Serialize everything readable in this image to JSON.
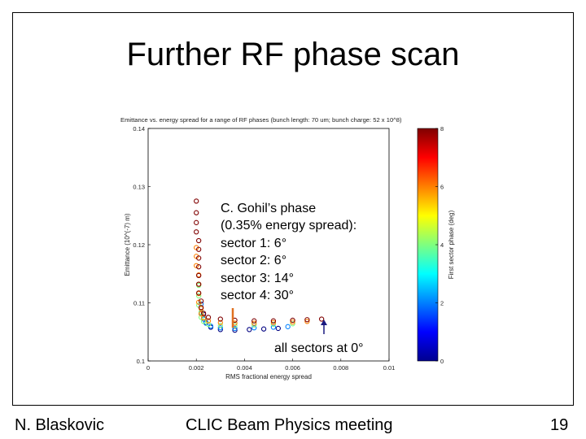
{
  "slide": {
    "title": "Further RF phase scan",
    "footer_left": "N. Blaskovic",
    "footer_center": "CLIC Beam Physics meeting",
    "footer_right": "19"
  },
  "annotations": {
    "gohil": [
      "C. Gohil’s phase",
      "(0.35% energy spread):",
      "sector 1: 6°",
      "sector 2: 6°",
      "sector 3: 14°",
      "sector 4: 30°"
    ],
    "all_zero": "all sectors at 0°",
    "arrow_color_gohil": "#e07020",
    "arrow_color_zero": "#1a1a80"
  },
  "chart_data": {
    "type": "scatter",
    "title": "Emittance vs. energy spread for a range of RF phases  (bunch length: 70 um; bunch charge: 52 x 10^8)",
    "xlabel": "RMS fractional energy spread",
    "ylabel": "Emittance (10^(-7) m)",
    "xlim": [
      0,
      0.01
    ],
    "ylim": [
      0.1,
      0.14
    ],
    "xticks": [
      "0",
      "0.002",
      "0.004",
      "0.006",
      "0.008",
      "0.01"
    ],
    "yticks": [
      "0.1",
      "0.11",
      "0.12",
      "0.13",
      "0.14"
    ],
    "grid": false,
    "colorbar": {
      "label": "First sector phase (deg)",
      "range": [
        0,
        8
      ],
      "ticks": [
        "0",
        "2",
        "4",
        "6",
        "8"
      ],
      "colormap": "jet"
    },
    "series": [
      {
        "phase": 8.0,
        "x": [
          0.002,
          0.002,
          0.002,
          0.002,
          0.0021,
          0.0021,
          0.0021,
          0.0021,
          0.0021,
          0.0021,
          0.0021,
          0.0022,
          0.0022,
          0.0023,
          0.0025,
          0.003,
          0.0036,
          0.0044,
          0.0052,
          0.006,
          0.0066,
          0.0072
        ],
        "y": [
          0.1275,
          0.1255,
          0.1238,
          0.1222,
          0.1207,
          0.1192,
          0.1177,
          0.1162,
          0.1147,
          0.1132,
          0.1117,
          0.1103,
          0.1092,
          0.1082,
          0.1075,
          0.1072,
          0.107,
          0.1069,
          0.1069,
          0.107,
          0.1071,
          0.1072
        ]
      },
      {
        "phase": 6.0,
        "x": [
          0.002,
          0.002,
          0.002,
          0.0021,
          0.0021,
          0.0021,
          0.0021,
          0.0022,
          0.0022,
          0.0023,
          0.0025,
          0.003,
          0.0036,
          0.0044,
          0.0052,
          0.006,
          0.0066
        ],
        "y": [
          0.1195,
          0.118,
          0.1164,
          0.1148,
          0.1132,
          0.1116,
          0.1101,
          0.109,
          0.1081,
          0.1074,
          0.1069,
          0.1066,
          0.1065,
          0.1065,
          0.1066,
          0.1067,
          0.1068
        ]
      },
      {
        "phase": 4.0,
        "x": [
          0.0021,
          0.0021,
          0.0021,
          0.0022,
          0.0022,
          0.0023,
          0.0025,
          0.003,
          0.0036,
          0.0044,
          0.0052,
          0.006
        ],
        "y": [
          0.113,
          0.1112,
          0.1096,
          0.1084,
          0.1075,
          0.1068,
          0.1063,
          0.1061,
          0.1061,
          0.1062,
          0.1063,
          0.1064
        ]
      },
      {
        "phase": 2.0,
        "x": [
          0.0022,
          0.0022,
          0.0023,
          0.0024,
          0.0026,
          0.003,
          0.0036,
          0.0044,
          0.0052,
          0.0058
        ],
        "y": [
          0.1098,
          0.1083,
          0.1072,
          0.1065,
          0.106,
          0.1057,
          0.1056,
          0.1057,
          0.1058,
          0.1059
        ]
      },
      {
        "phase": 0.0,
        "x": [
          0.0023,
          0.0024,
          0.0026,
          0.003,
          0.0036,
          0.0042,
          0.0048,
          0.0054
        ],
        "y": [
          0.108,
          0.1066,
          0.1058,
          0.1054,
          0.1053,
          0.1054,
          0.1055,
          0.1056
        ]
      }
    ]
  }
}
